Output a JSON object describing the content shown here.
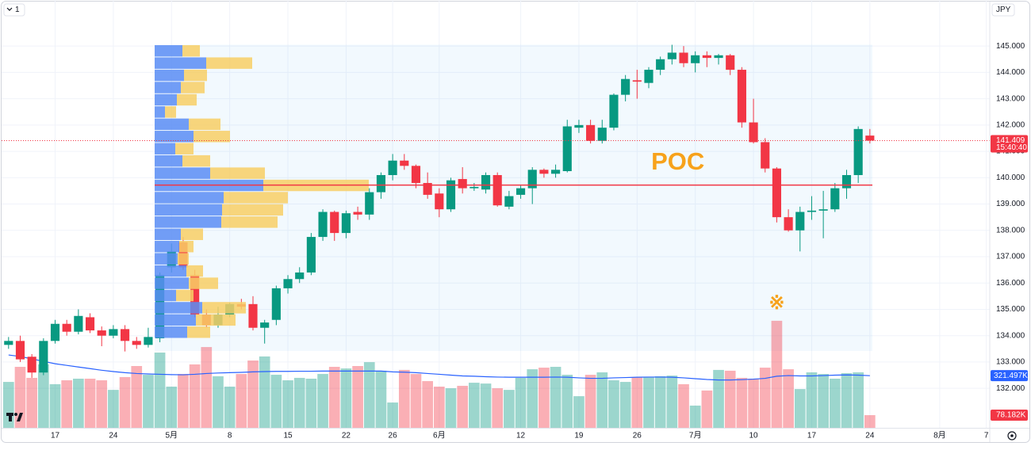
{
  "chart_data": {
    "type": "candlestick",
    "interval_button": "1",
    "currency": "JPY",
    "countdown": "15:40:40",
    "annotations": [
      {
        "text": "POC",
        "index": 57.5,
        "price": 140.55
      },
      {
        "text": "※",
        "index": 66,
        "price": 135.2
      }
    ],
    "xlim": [
      -0.6,
      84.3
    ],
    "ylim": [
      130.5,
      146.75
    ],
    "xticks": [
      {
        "value": 4,
        "label": "17"
      },
      {
        "value": 9,
        "label": "24"
      },
      {
        "value": 14,
        "label": "5月"
      },
      {
        "value": 19,
        "label": "8"
      },
      {
        "value": 24,
        "label": "15"
      },
      {
        "value": 29,
        "label": "22"
      },
      {
        "value": 33,
        "label": "26"
      },
      {
        "value": 37,
        "label": "6月"
      },
      {
        "value": 44,
        "label": "12"
      },
      {
        "value": 49,
        "label": "19"
      },
      {
        "value": 54,
        "label": "26"
      },
      {
        "value": 59,
        "label": "7月"
      },
      {
        "value": 64,
        "label": "10"
      },
      {
        "value": 69,
        "label": "17"
      },
      {
        "value": 74,
        "label": "24"
      },
      {
        "value": 80,
        "label": "8月"
      },
      {
        "value": 84,
        "label": "7"
      }
    ],
    "yticks": [
      {
        "value": 145,
        "label": "145.000"
      },
      {
        "value": 144,
        "label": "144.000"
      },
      {
        "value": 143,
        "label": "143.000"
      },
      {
        "value": 142,
        "label": "142.000"
      },
      {
        "value": 141,
        "label": "141.000"
      },
      {
        "value": 140,
        "label": "140.000"
      },
      {
        "value": 139,
        "label": "139.000"
      },
      {
        "value": 138,
        "label": "138.000"
      },
      {
        "value": 137,
        "label": "137.000"
      },
      {
        "value": 136,
        "label": "136.000"
      },
      {
        "value": 135,
        "label": "135.000"
      },
      {
        "value": 134,
        "label": "134.000"
      },
      {
        "value": 133,
        "label": "133.000"
      },
      {
        "value": 132,
        "label": "132.000"
      }
    ],
    "grid": true,
    "up_color": "#089981",
    "down_color": "#f23645",
    "candles": {
      "open": [
        133.65,
        133.8,
        133.2,
        132.6,
        133.8,
        134.45,
        134.15,
        134.7,
        134.2,
        134.0,
        134.25,
        133.8,
        133.65,
        133.9,
        136.6,
        137.55,
        136.3,
        134.8,
        134.4,
        134.8,
        135.2,
        135.2,
        134.3,
        134.6,
        135.8,
        136.15,
        136.4,
        137.75,
        138.7,
        137.9,
        138.7,
        138.6,
        139.45,
        140.1,
        140.65,
        140.45,
        139.8,
        139.4,
        138.8,
        139.95,
        139.6,
        139.55,
        140.1,
        138.9,
        139.35,
        139.6,
        140.3,
        140.15,
        140.25,
        141.9,
        142.0,
        141.4,
        141.9,
        143.15,
        143.7,
        143.6,
        144.1,
        144.5,
        144.75,
        144.35,
        144.65,
        144.55,
        144.65,
        144.1,
        142.1,
        141.35,
        140.35,
        138.5,
        138.0,
        138.7,
        138.75,
        138.8,
        139.6,
        140.1,
        141.6
      ],
      "high": [
        133.95,
        134.0,
        133.3,
        133.9,
        134.6,
        134.6,
        135.0,
        134.85,
        134.35,
        134.4,
        134.4,
        133.95,
        134.3,
        136.4,
        137.5,
        137.75,
        136.5,
        135.0,
        135.1,
        135.25,
        135.4,
        135.5,
        134.6,
        135.9,
        136.3,
        136.6,
        137.9,
        138.8,
        138.75,
        138.75,
        138.9,
        139.6,
        140.2,
        140.9,
        140.9,
        140.5,
        140.2,
        139.6,
        140.0,
        140.4,
        139.8,
        140.2,
        140.2,
        139.5,
        139.7,
        140.4,
        140.35,
        140.5,
        142.2,
        142.2,
        142.2,
        142.2,
        143.2,
        143.9,
        144.1,
        144.2,
        144.6,
        145.05,
        145.0,
        144.8,
        144.8,
        144.7,
        144.7,
        144.2,
        143.0,
        141.5,
        140.4,
        138.8,
        138.9,
        139.3,
        139.5,
        139.8,
        140.3,
        141.95,
        141.85
      ],
      "low": [
        133.5,
        133.0,
        132.4,
        132.5,
        133.7,
        134.0,
        134.05,
        134.1,
        133.6,
        133.9,
        133.4,
        133.5,
        133.55,
        133.75,
        136.4,
        136.5,
        134.7,
        134.3,
        134.3,
        134.7,
        135.0,
        134.2,
        133.7,
        134.4,
        135.6,
        136.0,
        136.3,
        137.6,
        137.6,
        137.7,
        138.4,
        138.4,
        139.2,
        139.9,
        140.3,
        139.6,
        139.2,
        138.5,
        138.7,
        139.4,
        139.5,
        139.4,
        138.9,
        138.8,
        139.2,
        139.0,
        140.0,
        140.0,
        140.2,
        141.7,
        141.3,
        141.3,
        141.8,
        142.9,
        143.0,
        143.4,
        143.9,
        144.3,
        144.2,
        144.0,
        144.2,
        144.3,
        143.9,
        141.9,
        141.3,
        140.2,
        138.3,
        137.95,
        137.2,
        138.4,
        137.7,
        138.7,
        139.2,
        139.8,
        141.3
      ],
      "close": [
        133.8,
        133.1,
        132.6,
        133.8,
        134.45,
        134.15,
        134.75,
        134.2,
        134.0,
        134.25,
        133.8,
        133.65,
        133.95,
        136.3,
        137.2,
        136.6,
        134.8,
        134.4,
        134.8,
        135.2,
        135.1,
        134.3,
        134.5,
        135.8,
        136.15,
        136.4,
        137.75,
        138.7,
        137.9,
        138.65,
        138.6,
        139.45,
        140.1,
        140.65,
        140.45,
        139.8,
        139.35,
        138.8,
        139.9,
        139.6,
        139.65,
        140.1,
        138.95,
        139.3,
        139.6,
        140.3,
        140.15,
        140.3,
        141.95,
        142.0,
        141.4,
        141.9,
        143.15,
        143.75,
        143.65,
        144.1,
        144.5,
        144.75,
        144.35,
        144.65,
        144.55,
        144.65,
        144.1,
        142.1,
        141.35,
        140.35,
        138.5,
        138.0,
        138.7,
        138.75,
        138.8,
        139.6,
        140.1,
        141.85,
        141.409
      ]
    },
    "volume": {
      "vlim": [
        0,
        488.5
      ],
      "values": [
        283,
        376,
        308,
        391,
        269,
        293,
        303,
        303,
        293,
        234,
        313,
        381,
        327,
        464,
        254,
        332,
        391,
        498,
        318,
        254,
        332,
        415,
        440,
        327,
        293,
        308,
        303,
        332,
        376,
        366,
        381,
        405,
        352,
        156,
        357,
        332,
        288,
        254,
        244,
        259,
        278,
        273,
        244,
        234,
        308,
        361,
        371,
        376,
        327,
        195,
        327,
        342,
        293,
        283,
        313,
        313,
        318,
        322,
        269,
        137,
        230,
        357,
        352,
        308,
        303,
        371,
        660,
        361,
        239,
        342,
        332,
        303,
        337,
        342,
        78.182
      ],
      "last_label": "78.182K",
      "ma": [
        449,
        440,
        425,
        410,
        395,
        385,
        375,
        365,
        355,
        347,
        340,
        335,
        332,
        330,
        328,
        327,
        330,
        335,
        338,
        340,
        342,
        345,
        347,
        348,
        348,
        349,
        349,
        350,
        350,
        350,
        350,
        350,
        350,
        345,
        343,
        340,
        335,
        330,
        325,
        320,
        318,
        315,
        313,
        312,
        312,
        312,
        312,
        313,
        312,
        308,
        305,
        305,
        308,
        310,
        312,
        313,
        313,
        312,
        308,
        303,
        298,
        295,
        295,
        297,
        300,
        305,
        318,
        322,
        320,
        320,
        322,
        325,
        326,
        325,
        321.497
      ],
      "ma_color": "#2962ff",
      "ma_last_label": "321.497K"
    },
    "profile": {
      "price_range": [
        133.9,
        145.05
      ],
      "up_color": "#5b8ef5",
      "down_color": "#f8cf66",
      "up": [
        35,
        65,
        37,
        33,
        28,
        13,
        43,
        49,
        26,
        35,
        70,
        137,
        87,
        85,
        84,
        33,
        31,
        29,
        40,
        43,
        27,
        60,
        52,
        41
      ],
      "down": [
        22,
        58,
        29,
        30,
        25,
        14,
        40,
        46,
        23,
        35,
        69,
        133,
        81,
        77,
        71,
        28,
        18,
        14,
        21,
        37,
        22,
        55,
        50,
        29
      ]
    },
    "poc": 139.72,
    "poc_color": "#f23645"
  }
}
